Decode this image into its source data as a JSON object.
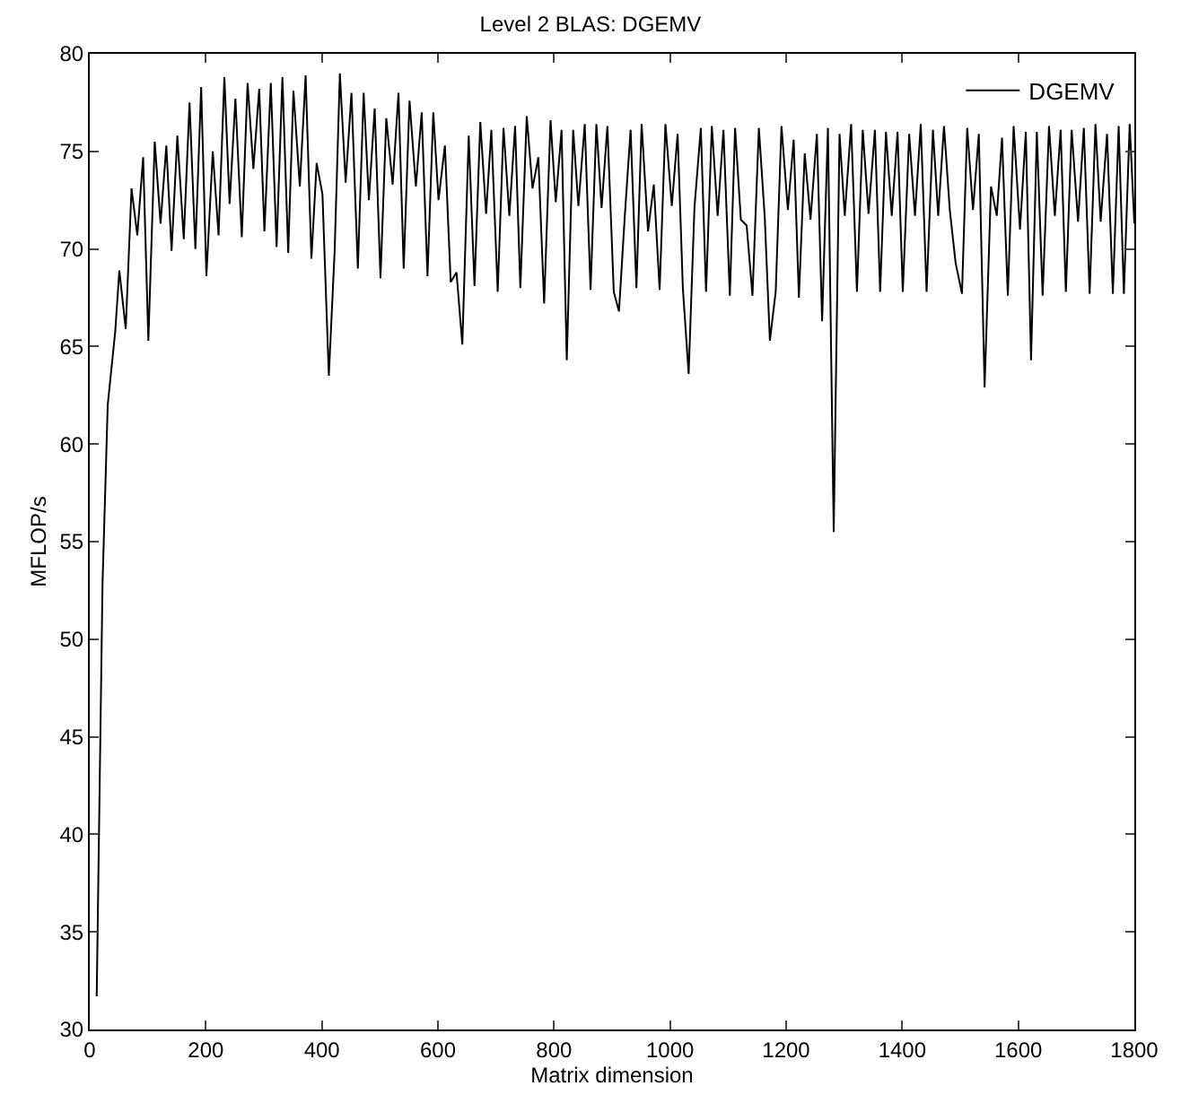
{
  "chart_data": {
    "type": "line",
    "title": "Level 2 BLAS: DGEMV",
    "xlabel": "Matrix dimension",
    "ylabel": "MFLOP/s",
    "xlim": [
      0,
      1800
    ],
    "xticks": [
      0,
      200,
      400,
      600,
      800,
      1000,
      1200,
      1400,
      1600,
      1800
    ],
    "ylim": [
      30,
      80
    ],
    "yticks": [
      30,
      35,
      40,
      45,
      50,
      55,
      60,
      65,
      70,
      75,
      80
    ],
    "legend": "top right",
    "marker": "none",
    "line_style": "solid",
    "series": [
      {
        "name": "DGEMV",
        "color": "#000000",
        "x": [
          12,
          22,
          31,
          44,
          51,
          62,
          72,
          82,
          92,
          101,
          112,
          122,
          132,
          141,
          151,
          162,
          172,
          182,
          192,
          201,
          212,
          222,
          232,
          241,
          251,
          262,
          272,
          282,
          292,
          301,
          312,
          322,
          332,
          342,
          351,
          362,
          372,
          382,
          391,
          401,
          412,
          422,
          431,
          441,
          451,
          462,
          472,
          481,
          491,
          501,
          511,
          522,
          532,
          541,
          551,
          562,
          572,
          582,
          592,
          601,
          612,
          622,
          632,
          642,
          653,
          663,
          673,
          683,
          692,
          703,
          713,
          723,
          733,
          742,
          753,
          763,
          773,
          783,
          794,
          803,
          813,
          822,
          833,
          842,
          853,
          863,
          873,
          882,
          892,
          903,
          912,
          922,
          932,
          942,
          951,
          962,
          972,
          982,
          992,
          1003,
          1013,
          1022,
          1032,
          1042,
          1053,
          1062,
          1072,
          1082,
          1092,
          1103,
          1112,
          1122,
          1132,
          1142,
          1153,
          1163,
          1172,
          1182,
          1192,
          1203,
          1213,
          1222,
          1232,
          1242,
          1253,
          1262,
          1272,
          1282,
          1292,
          1301,
          1312,
          1322,
          1332,
          1342,
          1353,
          1362,
          1372,
          1382,
          1392,
          1401,
          1412,
          1422,
          1432,
          1442,
          1453,
          1462,
          1472,
          1482,
          1492,
          1503,
          1512,
          1522,
          1532,
          1542,
          1553,
          1563,
          1572,
          1582,
          1592,
          1603,
          1613,
          1622,
          1632,
          1642,
          1653,
          1663,
          1673,
          1682,
          1692,
          1703,
          1713,
          1723,
          1733,
          1742,
          1753,
          1763,
          1773,
          1782,
          1792,
          1800
        ],
        "values": [
          31.7,
          52.8,
          62,
          65.8,
          68.9,
          65.9,
          73.1,
          70.7,
          74.7,
          65.3,
          75.5,
          71.3,
          75.3,
          69.9,
          75.8,
          70.5,
          77.5,
          70.0,
          78.3,
          68.6,
          75.0,
          70.7,
          78.8,
          72.3,
          77.7,
          70.6,
          78.5,
          74.1,
          78.2,
          70.9,
          78.5,
          70.1,
          78.8,
          69.8,
          78.1,
          73.2,
          78.9,
          69.5,
          74.4,
          72.8,
          63.5,
          69.9,
          79.0,
          73.4,
          78.0,
          69.0,
          78.0,
          72.5,
          77.2,
          68.5,
          76.7,
          73.3,
          78.0,
          69.0,
          77.6,
          73.2,
          77.0,
          68.6,
          77.0,
          72.5,
          75.3,
          68.3,
          68.8,
          65.1,
          75.8,
          68.1,
          76.5,
          71.8,
          76.1,
          67.8,
          76.2,
          71.7,
          76.3,
          68.0,
          76.8,
          73.1,
          74.7,
          67.2,
          76.6,
          72.4,
          76.1,
          64.3,
          76.1,
          72.2,
          76.4,
          67.9,
          76.4,
          72.1,
          76.3,
          67.8,
          66.8,
          71.7,
          76.1,
          68.0,
          76.4,
          70.9,
          73.3,
          67.9,
          76.4,
          72.2,
          75.9,
          68.0,
          63.6,
          72.1,
          76.2,
          67.8,
          76.3,
          71.7,
          76.1,
          67.6,
          76.2,
          71.5,
          71.2,
          67.6,
          76.2,
          71.7,
          65.3,
          67.8,
          76.3,
          72.0,
          75.6,
          67.5,
          74.9,
          71.5,
          75.9,
          66.3,
          76.2,
          55.5,
          75.9,
          71.7,
          76.4,
          67.8,
          76.1,
          71.8,
          76.1,
          67.8,
          76.0,
          71.7,
          76.0,
          67.8,
          75.9,
          71.7,
          76.4,
          67.8,
          76.1,
          71.7,
          76.3,
          72.0,
          69.3,
          67.7,
          76.2,
          72.0,
          75.9,
          62.9,
          73.2,
          71.7,
          75.7,
          67.6,
          76.3,
          71.0,
          76.0,
          64.3,
          76.0,
          67.6,
          76.3,
          71.7,
          76.1,
          67.8,
          76.1,
          71.4,
          76.2,
          67.7,
          76.4,
          71.4,
          75.9,
          67.7,
          76.3,
          67.7,
          76.4,
          71.3
        ]
      }
    ]
  }
}
